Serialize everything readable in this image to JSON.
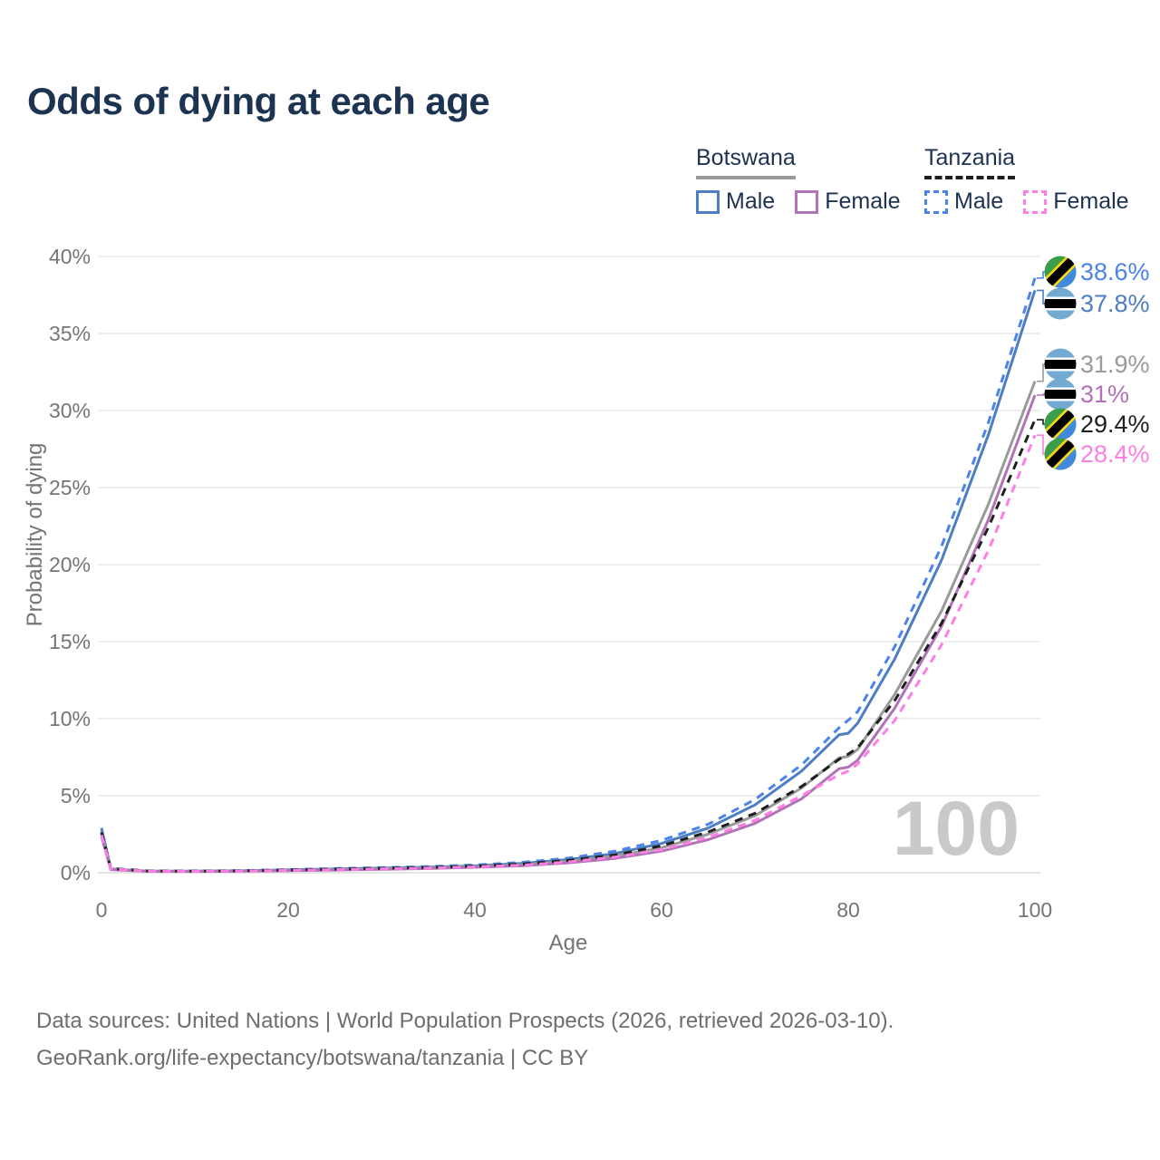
{
  "title": "Odds of dying at each age",
  "legend": {
    "groups": [
      {
        "country": "Botswana",
        "line_style": "solid",
        "underline_color": "#9a9a9a",
        "items": [
          {
            "label": "Male",
            "color": "#4d7ec2"
          },
          {
            "label": "Female",
            "color": "#b272b8"
          }
        ]
      },
      {
        "country": "Tanzania",
        "line_style": "dashed",
        "underline_color": "#1f1f1f",
        "items": [
          {
            "label": "Male",
            "color": "#4c83ea"
          },
          {
            "label": "Female",
            "color": "#ff7ee4"
          }
        ]
      }
    ]
  },
  "watermark": "100",
  "footer": {
    "line1": "Data sources: United Nations | World Population Prospects (2026, retrieved 2026-03-10).",
    "line2": "GeoRank.org/life-expectancy/botswana/tanzania | CC BY"
  },
  "chart_data": {
    "type": "line",
    "title": "Odds of dying at each age",
    "xlabel": "Age",
    "ylabel": "Probability of dying",
    "xlim": [
      0,
      100
    ],
    "ylim": [
      0,
      40
    ],
    "grid": "horizontal",
    "legend_position": "top-right",
    "x_ticks": [
      0,
      20,
      40,
      60,
      80,
      100
    ],
    "y_ticks": [
      0,
      5,
      10,
      15,
      20,
      25,
      30,
      35,
      40
    ],
    "y_tick_labels": [
      "0%",
      "5%",
      "10%",
      "15%",
      "20%",
      "25%",
      "30%",
      "35%",
      "40%"
    ],
    "x": [
      0,
      1,
      5,
      10,
      15,
      20,
      25,
      30,
      35,
      40,
      45,
      50,
      55,
      60,
      65,
      70,
      75,
      79,
      80,
      81,
      85,
      90,
      95,
      100
    ],
    "series": [
      {
        "name": "Tanzania Male",
        "country": "Tanzania",
        "sex": "Male",
        "color": "#4c83ea",
        "dash": "dashed",
        "flag": "tanzania",
        "end_label": "38.6%",
        "end_value": 38.6,
        "values": [
          2.7,
          0.28,
          0.12,
          0.11,
          0.14,
          0.2,
          0.27,
          0.33,
          0.4,
          0.5,
          0.67,
          0.95,
          1.4,
          2.1,
          3.15,
          4.75,
          7.0,
          9.4,
          9.9,
          10.45,
          14.7,
          21.2,
          29.2,
          38.6
        ]
      },
      {
        "name": "Botswana Male",
        "country": "Botswana",
        "sex": "Male",
        "color": "#4d7ec2",
        "dash": "solid",
        "flag": "botswana",
        "end_label": "37.8%",
        "end_value": 37.8,
        "values": [
          2.9,
          0.25,
          0.1,
          0.1,
          0.13,
          0.18,
          0.24,
          0.3,
          0.36,
          0.45,
          0.6,
          0.85,
          1.25,
          1.9,
          2.9,
          4.4,
          6.6,
          8.95,
          9.05,
          9.7,
          13.9,
          20.3,
          28.4,
          37.8
        ]
      },
      {
        "name": "Botswana",
        "country": "Botswana",
        "sex": "Both",
        "color": "#9a9a9a",
        "dash": "solid",
        "flag": "botswana",
        "end_label": "31.9%",
        "end_value": 31.9,
        "values": [
          2.55,
          0.23,
          0.1,
          0.09,
          0.11,
          0.15,
          0.2,
          0.26,
          0.31,
          0.4,
          0.52,
          0.74,
          1.08,
          1.62,
          2.5,
          3.7,
          5.5,
          7.45,
          7.55,
          8.0,
          11.6,
          17.0,
          23.9,
          31.9
        ]
      },
      {
        "name": "Botswana Female",
        "country": "Botswana",
        "sex": "Female",
        "color": "#b272b8",
        "dash": "solid",
        "flag": "botswana",
        "end_label": "31%",
        "end_value": 31,
        "values": [
          2.35,
          0.2,
          0.09,
          0.08,
          0.1,
          0.13,
          0.17,
          0.22,
          0.27,
          0.35,
          0.45,
          0.64,
          0.93,
          1.4,
          2.15,
          3.2,
          4.8,
          6.75,
          6.85,
          7.3,
          10.7,
          16.0,
          22.9,
          31.0
        ]
      },
      {
        "name": "Tanzania",
        "country": "Tanzania",
        "sex": "Both",
        "color": "#1f1f1f",
        "dash": "dashed",
        "flag": "tanzania",
        "end_label": "29.4%",
        "end_value": 29.4,
        "values": [
          2.6,
          0.26,
          0.11,
          0.1,
          0.12,
          0.17,
          0.23,
          0.28,
          0.34,
          0.43,
          0.56,
          0.8,
          1.15,
          1.75,
          2.65,
          3.85,
          5.6,
          7.35,
          7.7,
          8.1,
          11.2,
          16.2,
          22.4,
          29.4
        ]
      },
      {
        "name": "Tanzania Female",
        "country": "Tanzania",
        "sex": "Female",
        "color": "#ff7ee4",
        "dash": "dashed",
        "flag": "tanzania",
        "end_label": "28.4%",
        "end_value": 28.4,
        "values": [
          2.45,
          0.24,
          0.1,
          0.09,
          0.11,
          0.15,
          0.2,
          0.25,
          0.3,
          0.38,
          0.49,
          0.7,
          1.02,
          1.5,
          2.3,
          3.4,
          5.0,
          6.35,
          6.6,
          7.05,
          9.9,
          14.8,
          20.9,
          28.4
        ]
      }
    ],
    "flag_colors": {
      "botswana": {
        "field": "#72aad2",
        "band": "#000000",
        "band_edges": "#ffffff"
      },
      "tanzania": {
        "upper": "#3a9d4a",
        "lower": "#4189dd",
        "band": "#000000",
        "band_edges": "#f7d618"
      }
    },
    "axis_text_color": "#757575",
    "grid_color": "#e8e8e8",
    "watermark_color": "#c9c9c9"
  }
}
